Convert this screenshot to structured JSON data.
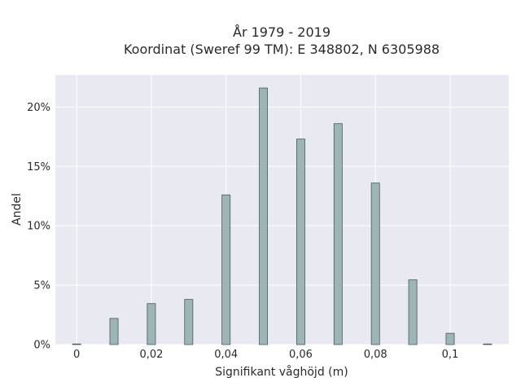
{
  "chart_data": {
    "type": "bar",
    "title_lines": [
      "År 1979 - 2019",
      "Koordinat (Sweref 99 TM): E 348802, N 6305988"
    ],
    "xlabel": "Signifikant våghöjd (m)",
    "ylabel": "Andel",
    "x": [
      0,
      0.01,
      0.02,
      0.03,
      0.04,
      0.05,
      0.06,
      0.07,
      0.08,
      0.09,
      0.1,
      0.11
    ],
    "values": [
      0.05,
      2.2,
      3.45,
      3.8,
      12.6,
      21.6,
      17.3,
      18.6,
      13.6,
      5.45,
      0.95,
      0.05
    ],
    "bar_width": 0.0022,
    "xlim": [
      -0.0057,
      0.1157
    ],
    "ylim": [
      0,
      22.7
    ],
    "x_ticks": [
      0,
      0.02,
      0.04,
      0.06,
      0.08,
      0.1
    ],
    "x_tick_labels": [
      "0",
      "0,02",
      "0,04",
      "0,06",
      "0,08",
      "0,1"
    ],
    "y_ticks": [
      0,
      5,
      10,
      15,
      20
    ],
    "y_tick_labels": [
      "0%",
      "5%",
      "10%",
      "15%",
      "20%"
    ],
    "grid": true,
    "bar_color": "#9db5b5",
    "bar_edge_color": "#4a5a5a",
    "plot_bg": "#e9e9f2"
  }
}
